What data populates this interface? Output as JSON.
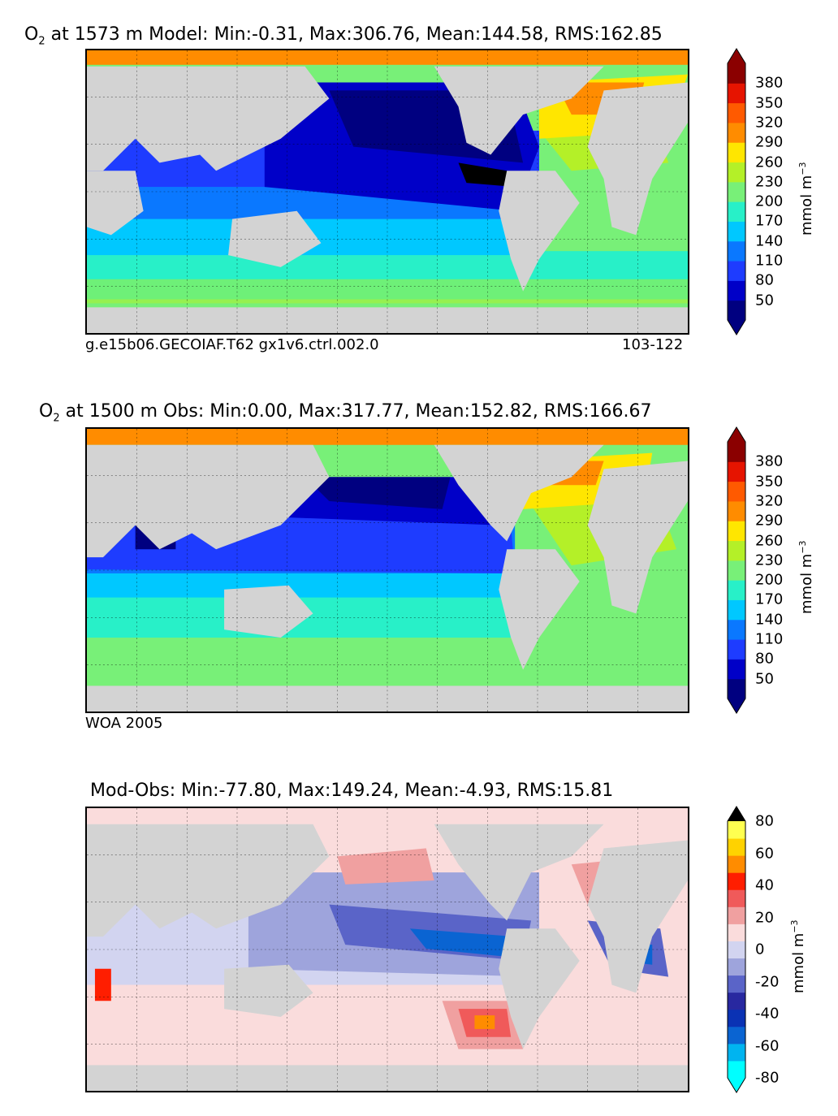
{
  "panels": [
    {
      "title_species": "O",
      "title_sub": "2",
      "title_rest": " at 1573 m Model: Min:-0.31, Max:306.76, Mean:144.58, RMS:162.85",
      "caption_left": "g.e15b06.GECOIAF.T62 gx1v6.ctrl.002.0",
      "caption_right": "103-122",
      "colorbar": {
        "ticks": [
          "380",
          "350",
          "320",
          "290",
          "260",
          "230",
          "200",
          "170",
          "140",
          "110",
          "80",
          "50"
        ],
        "unit_text": "mmol m",
        "unit_sup": "−3",
        "colors": [
          "#000080",
          "#0000c8",
          "#1e3cff",
          "#0a78ff",
          "#00c8ff",
          "#28f0c8",
          "#78f078",
          "#b4f028",
          "#ffe600",
          "#ff8c00",
          "#ff5a00",
          "#e61400",
          "#8b0000"
        ]
      }
    },
    {
      "title_species": "O",
      "title_sub": "2",
      "title_rest": " at 1500 m Obs: Min:0.00, Max:317.77, Mean:152.82, RMS:166.67",
      "caption_left": "WOA 2005",
      "caption_right": "",
      "colorbar": {
        "ticks": [
          "380",
          "350",
          "320",
          "290",
          "260",
          "230",
          "200",
          "170",
          "140",
          "110",
          "80",
          "50"
        ],
        "unit_text": "mmol m",
        "unit_sup": "−3",
        "colors": [
          "#000080",
          "#0000c8",
          "#1e3cff",
          "#0a78ff",
          "#00c8ff",
          "#28f0c8",
          "#78f078",
          "#b4f028",
          "#ffe600",
          "#ff8c00",
          "#ff5a00",
          "#e61400",
          "#8b0000"
        ]
      }
    },
    {
      "title_species": "",
      "title_sub": "",
      "title_rest": "Mod-Obs: Min:-77.80, Max:149.24, Mean:-4.93, RMS:15.81",
      "caption_left": "",
      "caption_right": "",
      "colorbar": {
        "ticks": [
          "80",
          "60",
          "40",
          "20",
          "0",
          "-20",
          "-40",
          "-60",
          "-80"
        ],
        "unit_text": "mmol m",
        "unit_sup": "−3",
        "colors": [
          "#00ffff",
          "#00b4f0",
          "#0a64d2",
          "#0a32b4",
          "#2828a0",
          "#5a64c8",
          "#9ea4dc",
          "#d2d4f0",
          "#fadcdc",
          "#f0a0a0",
          "#f05a5a",
          "#ff1e00",
          "#ff8c00",
          "#ffd200",
          "#ffff50"
        ]
      }
    }
  ],
  "colors": {
    "land": "#d3d3d3",
    "background": "#ffffff"
  }
}
